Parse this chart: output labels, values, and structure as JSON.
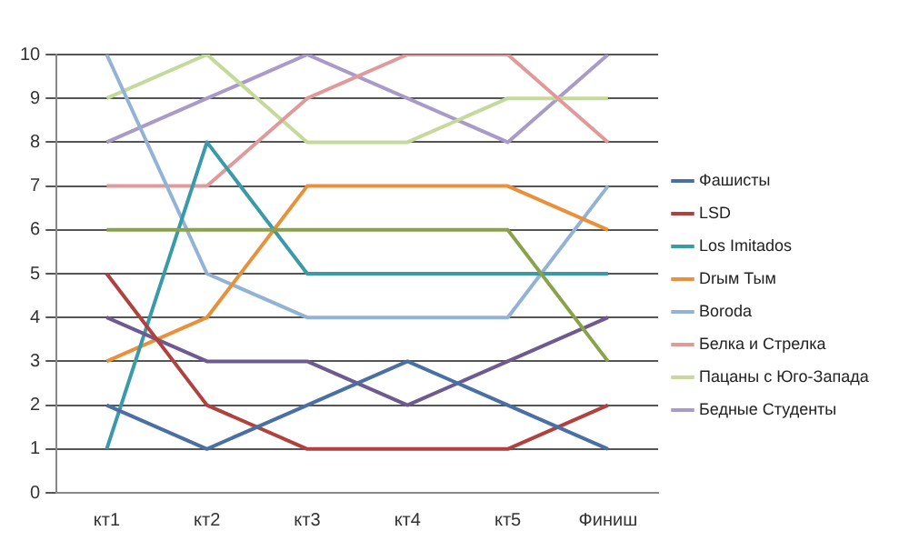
{
  "chart_data": {
    "type": "line",
    "categories": [
      "кт1",
      "кт2",
      "кт3",
      "кт4",
      "кт5",
      "Финиш"
    ],
    "series": [
      {
        "name": "Фашисты",
        "color": "#4a6fa5",
        "values": [
          2,
          1,
          2,
          3,
          2,
          1
        ]
      },
      {
        "name": "LSD",
        "color": "#b0413e",
        "values": [
          5,
          2,
          1,
          1,
          1,
          2
        ]
      },
      {
        "color": "#8aa34a",
        "values": [
          6,
          6,
          6,
          6,
          6,
          3
        ]
      },
      {
        "color": "#6e5a8e",
        "values": [
          4,
          3,
          3,
          2,
          3,
          4
        ]
      },
      {
        "name": "Los Imitados",
        "color": "#3b9aaa",
        "values": [
          1,
          8,
          5,
          5,
          5,
          5
        ]
      },
      {
        "name": "Drым Тым",
        "color": "#e8913a",
        "values": [
          3,
          4,
          7,
          7,
          7,
          6
        ]
      },
      {
        "name": "Borodа",
        "color": "#93b3d6",
        "values": [
          10,
          5,
          4,
          4,
          4,
          7
        ]
      },
      {
        "name": "Белка и Стрелка",
        "color": "#e09a9a",
        "values": [
          7,
          7,
          9,
          10,
          10,
          8
        ]
      },
      {
        "name": "Пацаны с Юго-Запада",
        "color": "#c4d99a",
        "values": [
          9,
          10,
          8,
          8,
          9,
          9
        ]
      },
      {
        "name": "Бедные Студенты",
        "color": "#a99bc9",
        "values": [
          8,
          9,
          10,
          9,
          8,
          10
        ]
      }
    ],
    "ylim": [
      0,
      10
    ],
    "yticks": [
      0,
      1,
      2,
      3,
      4,
      5,
      6,
      7,
      8,
      9,
      10
    ],
    "grid": "y",
    "legend": "right",
    "marker": "none",
    "line_style": "solid"
  }
}
